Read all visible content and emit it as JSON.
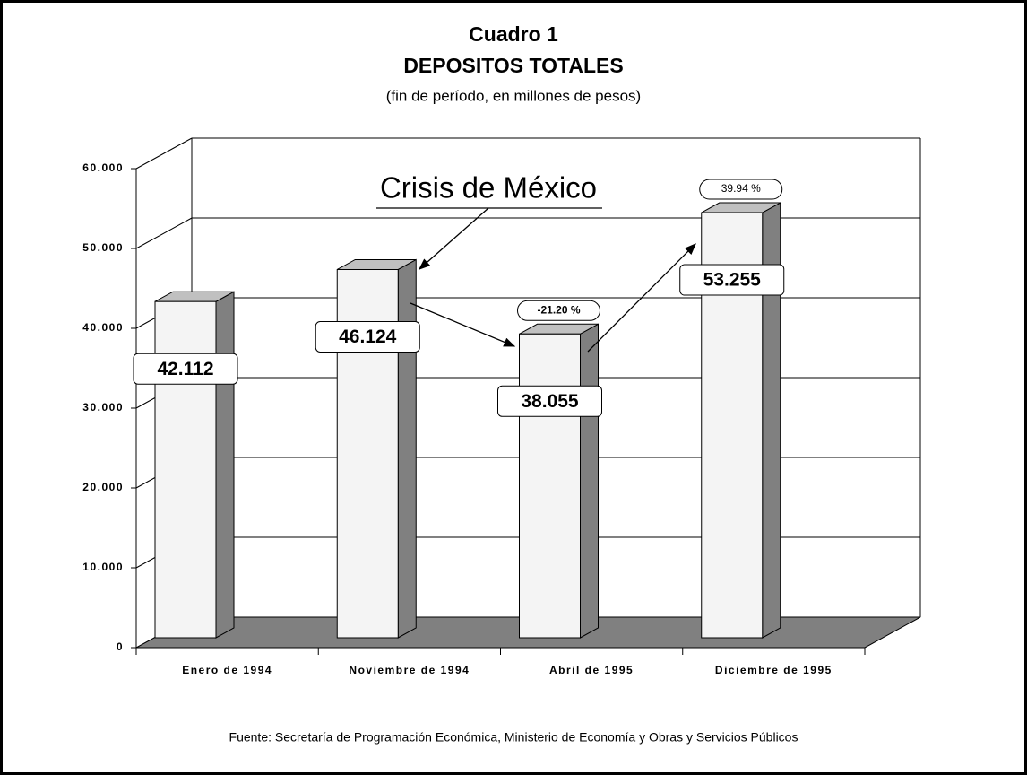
{
  "chart_data": {
    "type": "bar3d",
    "title": "Cuadro 1",
    "subtitle": "DEPOSITOS TOTALES",
    "units_note": "(fin de período, en millones de pesos)",
    "categories": [
      "Enero de 1994",
      "Noviembre de 1994",
      "Abril de 1995",
      "Diciembre de 1995"
    ],
    "values": [
      42112,
      46124,
      38055,
      53255
    ],
    "value_labels": [
      "42.112",
      "46.124",
      "38.055",
      "53.255"
    ],
    "color": "#f4f4f4",
    "side_color": "#808080",
    "ylim": [
      0,
      60000
    ],
    "yticks": [
      0,
      {
        "value": 10000,
        "label": "10.000"
      },
      {
        "value": 20000,
        "label": "20.000"
      },
      {
        "value": 30000,
        "label": "30.000"
      },
      {
        "value": 40000,
        "label": "40.000"
      },
      {
        "value": 50000,
        "label": "50.000"
      },
      {
        "value": 60000,
        "label": "60.000"
      }
    ],
    "grid": true,
    "annotations": [
      "Crisis de México",
      "-21.20 %",
      "39.94 %"
    ],
    "source": "Fuente: Secretaría de Programación Económica, Ministerio de Economía y Obras y Servicios Públicos"
  }
}
